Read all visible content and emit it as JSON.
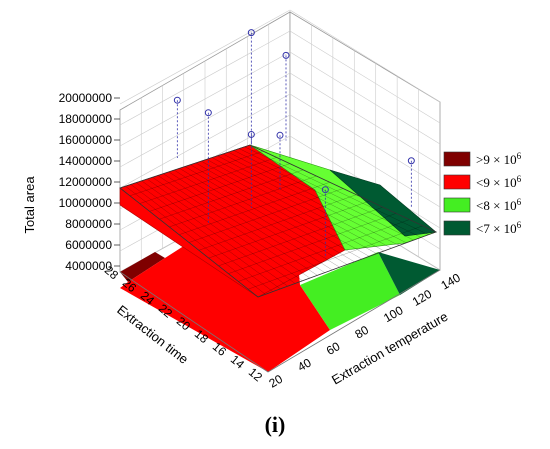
{
  "chart_data": {
    "type": "surface3d",
    "panel_label": "(i)",
    "z_axis": {
      "label": "Total area",
      "ticks": [
        "4000000",
        "6000000",
        "8000000",
        "10000000",
        "12000000",
        "14000000",
        "16000000",
        "18000000",
        "20000000"
      ],
      "range": [
        4000000,
        20000000
      ]
    },
    "x_axis": {
      "label": "Extraction temperature",
      "ticks": [
        "20",
        "40",
        "60",
        "80",
        "100",
        "120",
        "140"
      ],
      "range": [
        20,
        140
      ]
    },
    "y_axis": {
      "label": "Extraction time",
      "ticks": [
        "12",
        "14",
        "16",
        "18",
        "20",
        "22",
        "24",
        "26",
        "28"
      ],
      "range": [
        12,
        28
      ]
    },
    "legend": {
      "placement": "right",
      "items": [
        {
          "label": ">9 × 10",
          "exp": "6",
          "color": "#7f0000"
        },
        {
          "label": "<9 × 10",
          "exp": "6",
          "color": "#ff0000"
        },
        {
          "label": "<8 × 10",
          "exp": "6",
          "color": "#44ee22"
        },
        {
          "label": "<7 × 10",
          "exp": "6",
          "color": "#005a32"
        }
      ]
    },
    "observed_points": [
      {
        "temperature": 60,
        "time": 20,
        "total_area": 18800000
      },
      {
        "temperature": 30,
        "time": 20,
        "total_area": 13600000
      },
      {
        "temperature": 60,
        "time": 28,
        "total_area": 7600000
      },
      {
        "temperature": 60,
        "time": 20,
        "total_area": 9100000
      },
      {
        "temperature": 80,
        "time": 20,
        "total_area": 7400000
      },
      {
        "temperature": 110,
        "time": 24,
        "total_area": 10200000
      },
      {
        "temperature": 120,
        "time": 12,
        "total_area": 6500000
      },
      {
        "temperature": 60,
        "time": 12,
        "total_area": 8600000
      }
    ]
  }
}
